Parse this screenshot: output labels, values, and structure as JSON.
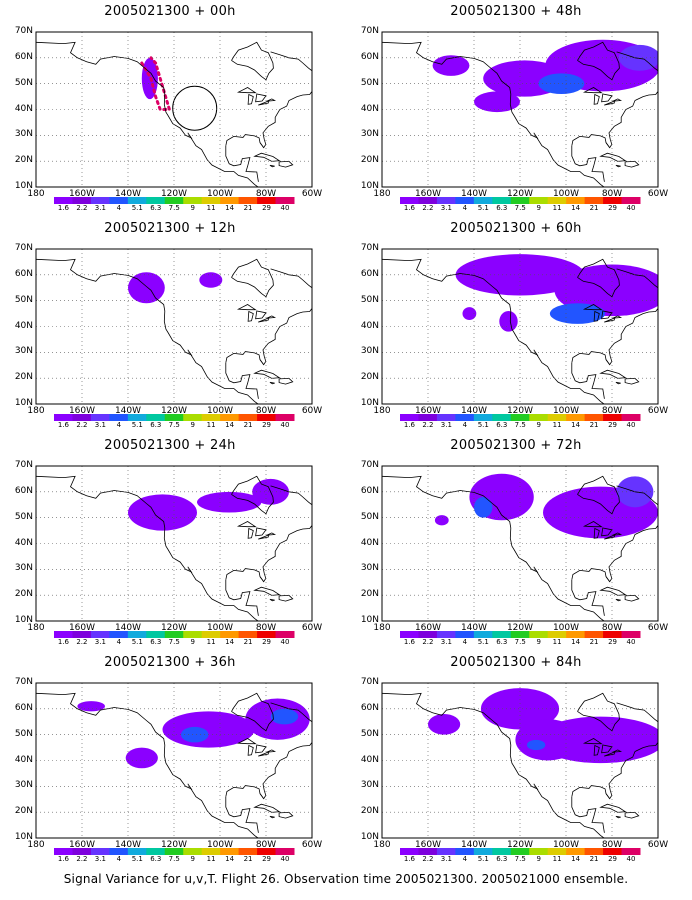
{
  "caption": "Signal Variance for u,v,T. Flight 26. Observation time 2005021300. 2005021000 ensemble.",
  "map_axes": {
    "lat_labels": [
      "70N",
      "60N",
      "50N",
      "40N",
      "30N",
      "20N",
      "10N"
    ],
    "lon_labels": [
      "180",
      "160W",
      "140W",
      "120W",
      "100W",
      "80W",
      "60W"
    ]
  },
  "colorbar": {
    "labels": [
      "1.6",
      "2.2",
      "3.1",
      "4",
      "5.1",
      "6.3",
      "7.5",
      "9",
      "11",
      "14",
      "21",
      "29",
      "40"
    ],
    "colors": [
      "#8b00ff",
      "#7d00dd",
      "#6633ff",
      "#2255ff",
      "#11aadd",
      "#00c8a0",
      "#22cc22",
      "#aadd00",
      "#ddcc00",
      "#ff9900",
      "#ff5500",
      "#ee0000",
      "#dd0066"
    ]
  },
  "panels": [
    {
      "title": "2005021300 + 00h"
    },
    {
      "title": "2005021300 + 48h"
    },
    {
      "title": "2005021300 + 12h"
    },
    {
      "title": "2005021300 + 60h"
    },
    {
      "title": "2005021300 + 24h"
    },
    {
      "title": "2005021300 + 72h"
    },
    {
      "title": "2005021300 + 36h"
    },
    {
      "title": "2005021300 + 84h"
    }
  ]
}
